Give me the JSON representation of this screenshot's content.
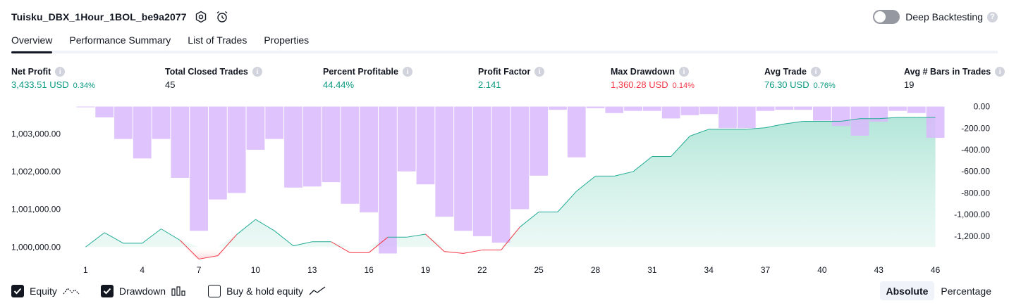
{
  "header": {
    "title": "Tuisku_DBX_1Hour_1BOL_be9a2077",
    "deep_backtesting_label": "Deep Backtesting"
  },
  "tabs": [
    "Overview",
    "Performance Summary",
    "List of Trades",
    "Properties"
  ],
  "metrics": [
    {
      "label": "Net Profit",
      "value": "3,433.51 USD",
      "sub": "0.34%",
      "color": "green"
    },
    {
      "label": "Total Closed Trades",
      "value": "45",
      "sub": "",
      "color": "default"
    },
    {
      "label": "Percent Profitable",
      "value": "44.44%",
      "sub": "",
      "color": "green"
    },
    {
      "label": "Profit Factor",
      "value": "2.141",
      "sub": "",
      "color": "green"
    },
    {
      "label": "Max Drawdown",
      "value": "1,360.28 USD",
      "sub": "0.14%",
      "color": "red"
    },
    {
      "label": "Avg Trade",
      "value": "76.30 USD",
      "sub": "0.76%",
      "color": "green"
    },
    {
      "label": "Avg # Bars in Trades",
      "value": "19",
      "sub": "",
      "color": "default"
    }
  ],
  "legend": {
    "equity_label": "Equity",
    "drawdown_label": "Drawdown",
    "buy_hold_label": "Buy & hold equity",
    "equity_checked": true,
    "drawdown_checked": true,
    "buy_hold_checked": false
  },
  "view_toggle": {
    "absolute_label": "Absolute",
    "percentage_label": "Percentage",
    "active": "Absolute"
  },
  "colors": {
    "green": "#089981",
    "red": "#f23645",
    "drawdown_bar": "#d9b8fb",
    "equity_fill": "#cdeee6"
  },
  "chart_data": {
    "type": "bar",
    "x": [
      1,
      2,
      3,
      4,
      5,
      6,
      7,
      8,
      9,
      10,
      11,
      12,
      13,
      14,
      15,
      16,
      17,
      18,
      19,
      20,
      21,
      22,
      23,
      24,
      25,
      26,
      27,
      28,
      29,
      30,
      31,
      32,
      33,
      34,
      35,
      36,
      37,
      38,
      39,
      40,
      41,
      42,
      43,
      44,
      45,
      46
    ],
    "x_ticks": [
      1,
      4,
      7,
      10,
      13,
      16,
      19,
      22,
      25,
      28,
      31,
      34,
      37,
      40,
      43,
      46
    ],
    "left_axis": {
      "ticks": [
        "1,000,000.00",
        "1,001,000.00",
        "1,002,000.00",
        "1,003,000.00"
      ],
      "range": [
        999800,
        1003750
      ]
    },
    "right_axis": {
      "ticks": [
        "0.00",
        "-200.00",
        "-400.00",
        "-600.00",
        "-800.00",
        "-1,000.00",
        "-1,200.00"
      ],
      "range": [
        -1370,
        10
      ]
    },
    "series": [
      {
        "name": "Equity",
        "axis": "left",
        "values": [
          1000000,
          1000380,
          1000100,
          1000100,
          1000480,
          1000180,
          999680,
          999770,
          1000330,
          1000730,
          1000430,
          1000030,
          1000140,
          1000140,
          999850,
          999850,
          1000260,
          1000260,
          1000340,
          999880,
          999830,
          999920,
          999920,
          1000530,
          1000930,
          1000930,
          1001480,
          1001880,
          1001880,
          1002000,
          1002400,
          1002400,
          1002940,
          1003120,
          1003120,
          1003120,
          1003160,
          1003260,
          1003330,
          1003330,
          1003330,
          1003400,
          1003400,
          1003433,
          1003433,
          1003433
        ]
      },
      {
        "name": "Drawdown",
        "axis": "right",
        "values": [
          0,
          -100,
          -300,
          -480,
          -300,
          -660,
          -1150,
          -860,
          -800,
          -400,
          -300,
          -750,
          -740,
          -700,
          -900,
          -980,
          -1360,
          -600,
          -720,
          -1020,
          -1150,
          -1200,
          -1260,
          -950,
          -640,
          -30,
          -470,
          -15,
          -60,
          -40,
          -40,
          -110,
          -80,
          -70,
          -200,
          -200,
          -40,
          -30,
          -30,
          -130,
          -180,
          -270,
          -140,
          -40,
          -60,
          -290
        ]
      }
    ],
    "xlabel": "",
    "ylabel": ""
  }
}
